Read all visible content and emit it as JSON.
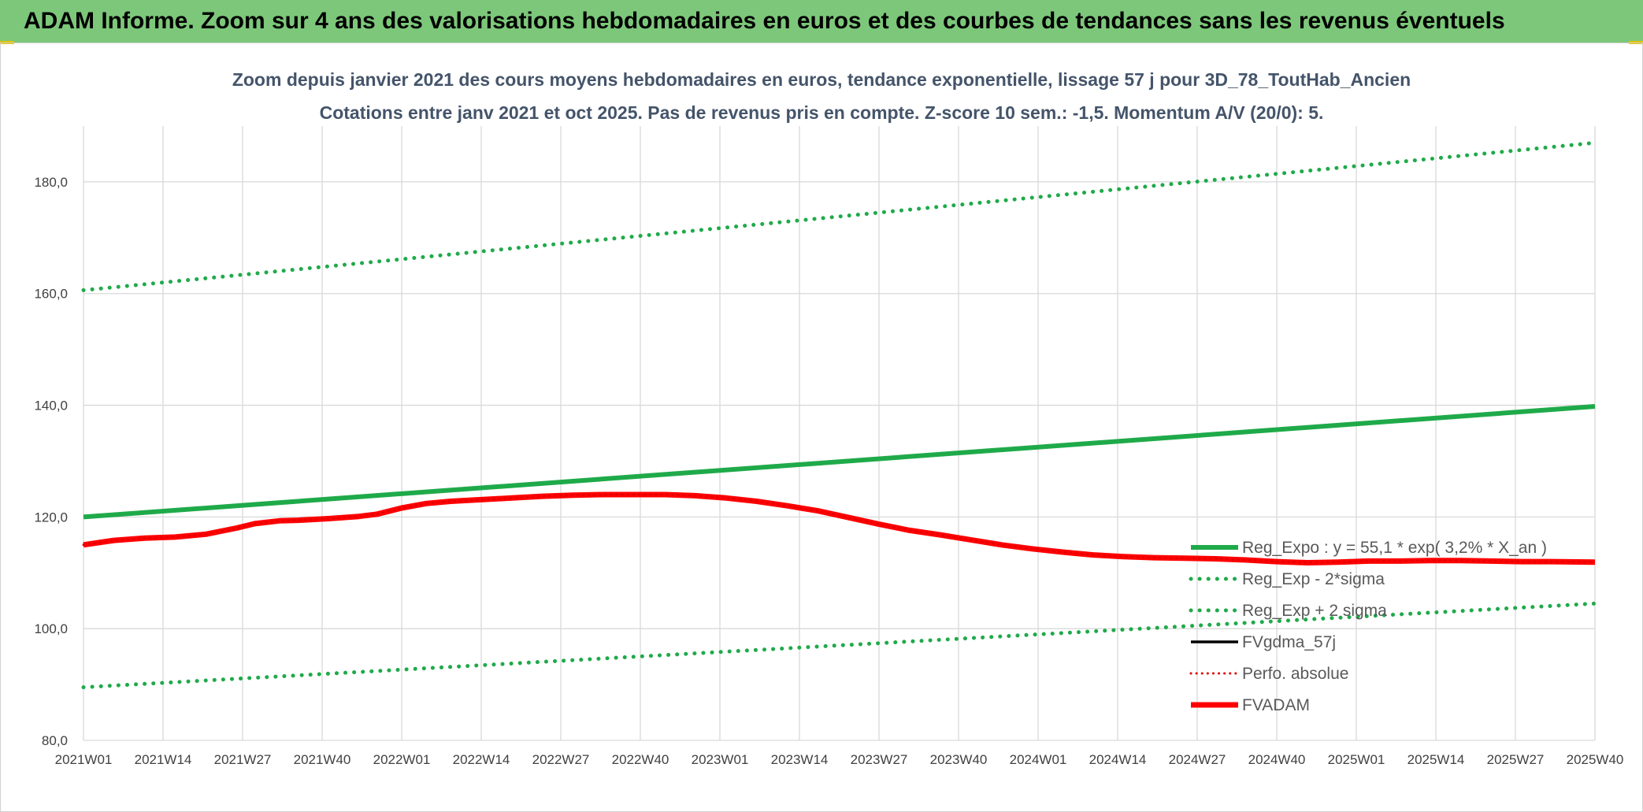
{
  "banner": {
    "title": "ADAM Informe. Zoom sur 4 ans des valorisations hebdomadaires en euros et des courbes de tendances sans les revenus éventuels"
  },
  "colors": {
    "banner": "#7dc77a",
    "trend": "#1faa4a",
    "sigma": "#1faa4a",
    "smooth": "#000000",
    "perf": "#e00000",
    "fvadam": "#ff0000",
    "grid": "#d9d9d9"
  },
  "chart_data": {
    "type": "line",
    "title": "Zoom depuis janvier 2021 des cours moyens hebdomadaires en euros, tendance exponentielle, lissage 57 j pour 3D_78_ToutHab_Ancien",
    "subtitle": "Cotations entre janv 2021 et oct 2025. Pas de revenus pris en compte. Z-score 10 sem.: -1,5. Momentum A/V (20/0): 5.",
    "xlabel": "",
    "ylabel": "",
    "ylim": [
      80,
      190
    ],
    "yticks": [
      80,
      100,
      120,
      140,
      160,
      180
    ],
    "ytick_labels": [
      "80,0",
      "100,0",
      "120,0",
      "140,0",
      "160,0",
      "180,0"
    ],
    "xlim": [
      0,
      247
    ],
    "x_ticks": [
      {
        "x": 0,
        "label": "2021W01"
      },
      {
        "x": 13,
        "label": "2021W14"
      },
      {
        "x": 26,
        "label": "2021W27"
      },
      {
        "x": 39,
        "label": "2021W40"
      },
      {
        "x": 52,
        "label": "2022W01"
      },
      {
        "x": 65,
        "label": "2022W14"
      },
      {
        "x": 78,
        "label": "2022W27"
      },
      {
        "x": 91,
        "label": "2022W40"
      },
      {
        "x": 104,
        "label": "2023W01"
      },
      {
        "x": 117,
        "label": "2023W14"
      },
      {
        "x": 130,
        "label": "2023W27"
      },
      {
        "x": 143,
        "label": "2023W40"
      },
      {
        "x": 156,
        "label": "2024W01"
      },
      {
        "x": 169,
        "label": "2024W14"
      },
      {
        "x": 182,
        "label": "2024W27"
      },
      {
        "x": 195,
        "label": "2024W40"
      },
      {
        "x": 208,
        "label": "2025W01"
      },
      {
        "x": 221,
        "label": "2025W14"
      },
      {
        "x": 234,
        "label": "2025W27"
      },
      {
        "x": 247,
        "label": "2025W40"
      }
    ],
    "legend_position": "right",
    "series": [
      {
        "name": "Reg_Expo : y = 55,1 * exp( 3,2% * X_an )",
        "style": "trend",
        "x": [
          0,
          247
        ],
        "y": [
          120.0,
          139.8
        ]
      },
      {
        "name": "Reg_Exp - 2*sigma",
        "style": "sigma",
        "x": [
          0,
          247
        ],
        "y": [
          89.5,
          104.5
        ]
      },
      {
        "name": "Reg_Exp + 2 sigma",
        "style": "sigma",
        "x": [
          0,
          247
        ],
        "y": [
          160.6,
          187.0
        ]
      },
      {
        "name": "FVgdma_57j",
        "style": "smooth",
        "x": [
          0,
          5,
          10,
          15,
          20,
          25,
          28,
          32,
          35,
          40,
          45,
          48,
          52,
          56,
          60,
          65,
          70,
          75,
          80,
          85,
          90,
          95,
          100,
          105,
          110,
          115,
          120,
          125,
          130,
          135,
          140,
          145,
          150,
          155,
          160,
          165,
          170,
          175,
          180,
          185,
          190,
          195,
          200,
          205,
          210,
          215,
          220,
          225,
          230,
          235,
          240,
          247
        ],
        "y": [
          115.0,
          115.6,
          116.2,
          116.4,
          116.9,
          118.0,
          118.8,
          119.2,
          119.3,
          119.6,
          120.0,
          120.5,
          121.5,
          122.3,
          122.7,
          123.0,
          123.4,
          123.7,
          123.9,
          124.0,
          124.0,
          124.0,
          123.8,
          123.4,
          122.8,
          121.9,
          121.0,
          119.8,
          118.6,
          117.6,
          116.7,
          115.9,
          115.0,
          114.3,
          113.7,
          113.2,
          112.9,
          112.7,
          112.6,
          112.5,
          112.3,
          112.0,
          111.7,
          111.9,
          112.1,
          112.1,
          112.2,
          112.2,
          112.1,
          112.0,
          112.0,
          111.9
        ]
      },
      {
        "name": "Perfo. absolue",
        "style": "perf",
        "x": [
          0,
          5,
          10,
          15,
          20,
          25,
          28,
          32,
          35,
          40,
          45,
          48,
          52,
          56,
          60,
          65,
          70,
          75,
          80,
          85,
          90,
          95,
          100,
          105,
          110,
          115,
          120,
          125,
          130,
          135,
          140,
          145,
          150,
          155,
          160,
          165,
          170,
          175,
          180,
          185,
          190,
          195,
          200,
          205,
          210,
          215,
          220,
          225,
          230,
          235,
          240,
          247
        ],
        "y": [
          115.0,
          115.8,
          116.2,
          116.4,
          116.9,
          118.0,
          118.8,
          119.3,
          119.4,
          119.7,
          120.1,
          120.5,
          121.6,
          122.4,
          122.8,
          123.1,
          123.4,
          123.7,
          123.9,
          124.0,
          124.0,
          124.0,
          123.8,
          123.4,
          122.8,
          122.0,
          121.1,
          119.9,
          118.7,
          117.6,
          116.8,
          115.9,
          115.0,
          114.3,
          113.7,
          113.2,
          112.9,
          112.7,
          112.6,
          112.5,
          112.3,
          112.0,
          111.8,
          111.9,
          112.1,
          112.1,
          112.2,
          112.2,
          112.1,
          112.0,
          112.0,
          111.9
        ]
      },
      {
        "name": "FVADAM",
        "style": "fvadam",
        "x": [
          0,
          5,
          10,
          15,
          20,
          25,
          28,
          32,
          35,
          40,
          45,
          48,
          52,
          56,
          60,
          65,
          70,
          75,
          80,
          85,
          90,
          95,
          100,
          105,
          110,
          115,
          120,
          125,
          130,
          135,
          140,
          145,
          150,
          155,
          160,
          165,
          170,
          175,
          180,
          185,
          190,
          195,
          200,
          205,
          210,
          215,
          220,
          225,
          230,
          235,
          240,
          247
        ],
        "y": [
          115.0,
          115.8,
          116.2,
          116.4,
          116.9,
          118.0,
          118.8,
          119.3,
          119.4,
          119.7,
          120.1,
          120.5,
          121.6,
          122.4,
          122.8,
          123.1,
          123.4,
          123.7,
          123.9,
          124.0,
          124.0,
          124.0,
          123.8,
          123.4,
          122.8,
          122.0,
          121.1,
          119.9,
          118.7,
          117.6,
          116.8,
          115.9,
          115.0,
          114.3,
          113.7,
          113.2,
          112.9,
          112.7,
          112.6,
          112.5,
          112.3,
          112.0,
          111.8,
          111.9,
          112.1,
          112.1,
          112.2,
          112.2,
          112.1,
          112.0,
          112.0,
          111.9
        ]
      }
    ]
  }
}
